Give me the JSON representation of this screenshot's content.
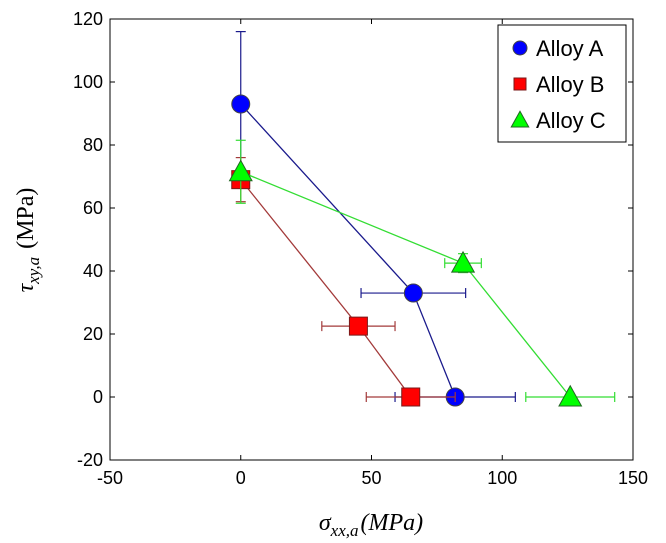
{
  "chart_data": {
    "type": "scatter",
    "xlabel": {
      "symbol": "σ",
      "sub": "xx,a",
      "unit": "(MPa)"
    },
    "ylabel": {
      "symbol": "τ",
      "sub": "xy,a",
      "unit": "(MPa)"
    },
    "xlim": [
      -50,
      150
    ],
    "ylim": [
      -20,
      120
    ],
    "xticks": [
      "-50",
      "0",
      "50",
      "100",
      "150"
    ],
    "yticks": [
      "-20",
      "0",
      "20",
      "40",
      "60",
      "80",
      "100",
      "120"
    ],
    "legend_position": "top-right",
    "grid": false,
    "series": [
      {
        "name": "Alloy A",
        "marker": "circle",
        "color": "#0000ff",
        "line_color": "#1a1a8c",
        "points": [
          {
            "x": 0,
            "y": 93,
            "yerr": [
              23,
              23
            ]
          },
          {
            "x": 66,
            "y": 33,
            "xerr": [
              20,
              20
            ],
            "yerr": [
              2,
              2
            ]
          },
          {
            "x": 82,
            "y": 0,
            "xerr": [
              23,
              23
            ]
          }
        ]
      },
      {
        "name": "Alloy B",
        "marker": "square",
        "color": "#ff0000",
        "line_color": "#a33a3a",
        "points": [
          {
            "x": 0,
            "y": 69,
            "yerr": [
              7,
              7
            ]
          },
          {
            "x": 45,
            "y": 22.5,
            "xerr": [
              14,
              14
            ],
            "yerr": [
              2,
              2
            ]
          },
          {
            "x": 65,
            "y": 0,
            "xerr": [
              17,
              17
            ]
          }
        ]
      },
      {
        "name": "Alloy C",
        "marker": "triangle",
        "color": "#00ff00",
        "line_color": "#33dd33",
        "points": [
          {
            "x": 0,
            "y": 71.5,
            "yerr": [
              10,
              10
            ]
          },
          {
            "x": 85,
            "y": 42.5,
            "xerr": [
              7,
              7
            ],
            "yerr": [
              3,
              3
            ]
          },
          {
            "x": 126,
            "y": 0,
            "xerr": [
              17,
              17
            ]
          }
        ]
      }
    ]
  }
}
